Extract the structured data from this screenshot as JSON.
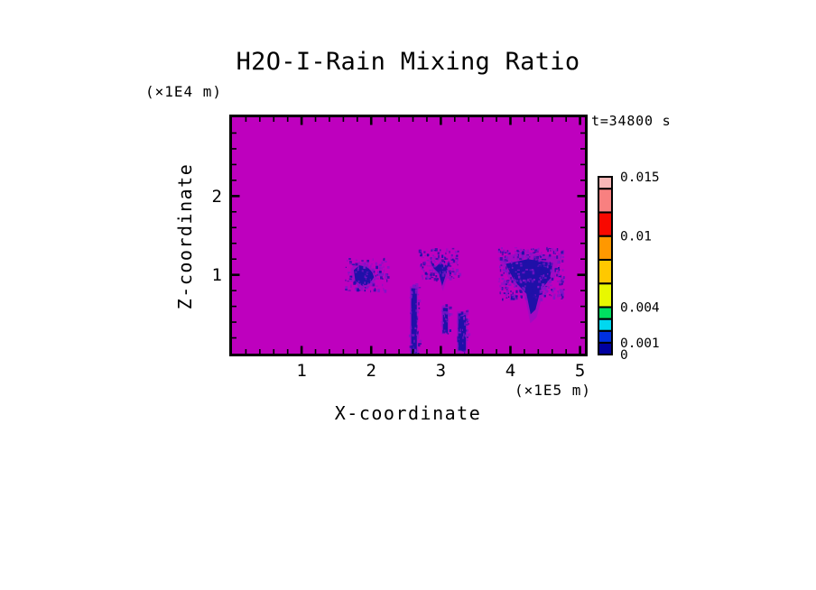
{
  "figure": {
    "title": "H2O-I-Rain Mixing Ratio",
    "time_label": "t=34800 s",
    "x_axis_label": "X-coordinate",
    "y_axis_label": "Z-coordinate",
    "x_unit_label": "(×1E5 m)",
    "y_unit_label": "(×1E4 m)"
  },
  "chart_data": {
    "type": "heatmap",
    "title": "H2O-I-Rain Mixing Ratio",
    "xlabel": "X-coordinate",
    "ylabel": "Z-coordinate",
    "x_unit": "(×1E5 m)",
    "y_unit": "(×1E4 m)",
    "time_annotation": "t=34800 s",
    "xlim": [
      0,
      5.07
    ],
    "ylim": [
      0,
      3.0
    ],
    "x_major_ticks": [
      1,
      2,
      3,
      4,
      5
    ],
    "y_major_ticks": [
      1,
      2
    ],
    "minor_tick_step": 0.2,
    "grid": false,
    "legend_position": "right",
    "background_color": "#BE00BE",
    "feature_colors": {
      "core": "#1F10A8",
      "fringe": "#7E14C8"
    },
    "colorbar": {
      "min": 0,
      "max": 0.015,
      "levels": [
        0,
        0.001,
        0.002,
        0.003,
        0.004,
        0.006,
        0.008,
        0.01,
        0.012,
        0.014,
        0.015
      ],
      "colors": [
        "#0000A0",
        "#0030E0",
        "#00D8F0",
        "#00E060",
        "#E8F800",
        "#FFC800",
        "#FF9800",
        "#F80800",
        "#F88080",
        "#F8B8B8"
      ],
      "tick_labels": [
        {
          "value": 0.015,
          "label": "0.015"
        },
        {
          "value": 0.01,
          "label": "0.01"
        },
        {
          "value": 0.004,
          "label": "0.004"
        },
        {
          "value": 0.001,
          "label": "0.001"
        },
        {
          "value": 0,
          "label": "0"
        }
      ]
    },
    "features": [
      {
        "name": "rain-cell-left",
        "kind": "blob",
        "core": [
          [
            1.75,
            1.06
          ],
          [
            1.83,
            1.12
          ],
          [
            1.94,
            1.1
          ],
          [
            2.01,
            1.04
          ],
          [
            2.04,
            0.97
          ],
          [
            1.98,
            0.89
          ],
          [
            1.87,
            0.86
          ],
          [
            1.77,
            0.93
          ]
        ],
        "speckle": {
          "count": 130,
          "x": [
            1.62,
            2.23
          ],
          "z": [
            0.8,
            1.22
          ]
        }
      },
      {
        "name": "rain-cell-middle",
        "kind": "blob",
        "core": [
          [
            2.85,
            1.18
          ],
          [
            2.93,
            1.1
          ],
          [
            3.0,
            1.16
          ],
          [
            3.07,
            1.09
          ],
          [
            3.12,
            1.16
          ],
          [
            3.08,
            1.02
          ],
          [
            3.02,
            0.86
          ],
          [
            2.97,
            1.02
          ],
          [
            2.9,
            1.08
          ]
        ],
        "speckle": {
          "count": 150,
          "x": [
            2.68,
            3.26
          ],
          "z": [
            0.95,
            1.35
          ]
        }
      },
      {
        "name": "rain-cell-right",
        "kind": "blob",
        "core": [
          [
            3.93,
            1.14
          ],
          [
            4.25,
            1.2
          ],
          [
            4.61,
            1.15
          ],
          [
            4.56,
            0.94
          ],
          [
            4.43,
            0.8
          ],
          [
            4.36,
            0.56
          ],
          [
            4.29,
            0.5
          ],
          [
            4.23,
            0.76
          ],
          [
            4.06,
            0.92
          ]
        ],
        "speckle": {
          "count": 380,
          "x": [
            3.82,
            4.76
          ],
          "z": [
            0.7,
            1.36
          ]
        }
      },
      {
        "name": "rain-shaft-left",
        "kind": "streak",
        "x": [
          2.575,
          2.655
        ],
        "z": [
          0.0,
          0.83
        ],
        "speckle": {
          "count": 70,
          "x": [
            2.54,
            2.69
          ],
          "z": [
            0.0,
            0.9
          ]
        }
      },
      {
        "name": "rain-shaft-middle",
        "kind": "streak",
        "x": [
          3.03,
          3.1
        ],
        "z": [
          0.27,
          0.58
        ],
        "speckle": {
          "count": 30,
          "x": [
            3.0,
            3.13
          ],
          "z": [
            0.23,
            0.63
          ]
        }
      },
      {
        "name": "rain-shaft-right",
        "kind": "streak",
        "x": [
          3.25,
          3.36
        ],
        "z": [
          0.04,
          0.51
        ],
        "speckle": {
          "count": 55,
          "x": [
            3.22,
            3.4
          ],
          "z": [
            0.0,
            0.57
          ]
        }
      }
    ]
  }
}
